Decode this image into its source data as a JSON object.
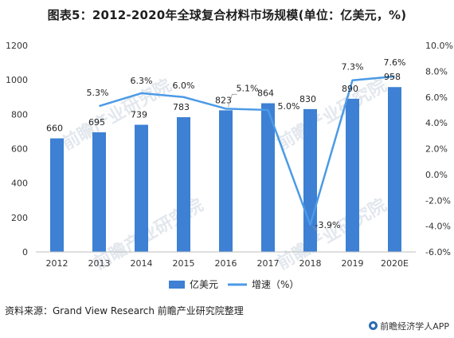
{
  "chart_data": {
    "type": "bar",
    "title": "图表5：2012-2020年全球复合材料市场规模(单位：亿美元，%)",
    "categories": [
      "2012",
      "2013",
      "2014",
      "2015",
      "2016",
      "2017",
      "2018",
      "2019",
      "2020E"
    ],
    "series": [
      {
        "name": "亿美元",
        "type": "bar",
        "axis": "left",
        "values": [
          660,
          695,
          739,
          783,
          823,
          864,
          830,
          890,
          958
        ],
        "labels": [
          "660",
          "695",
          "739",
          "783",
          "823",
          "864",
          "830",
          "890",
          "958"
        ],
        "color": "#3d80d4"
      },
      {
        "name": "增速（%）",
        "type": "line",
        "axis": "right",
        "values": [
          null,
          5.3,
          6.3,
          6.0,
          5.1,
          5.0,
          -3.9,
          7.3,
          7.6
        ],
        "labels": [
          "",
          "5.3%",
          "6.3%",
          "6.0%",
          "5.1%",
          "5.0%",
          "-3.9%",
          "7.3%",
          "7.6%"
        ],
        "color": "#4b9ae6"
      }
    ],
    "ylim_left": [
      0,
      1200
    ],
    "yticks_left": [
      "0",
      "200",
      "400",
      "600",
      "800",
      "1000",
      "1200"
    ],
    "ylim_right": [
      -6,
      10
    ],
    "yticks_right": [
      "-6.0%",
      "-4.0%",
      "-2.0%",
      "0.0%",
      "2.0%",
      "4.0%",
      "6.0%",
      "8.0%",
      "10.0%"
    ],
    "grid": false,
    "legend_position": "bottom"
  },
  "source": "资料来源：Grand View Research 前瞻产业研究院整理",
  "credit": "前瞻经济学人APP",
  "watermark": "前瞻产业研究院"
}
